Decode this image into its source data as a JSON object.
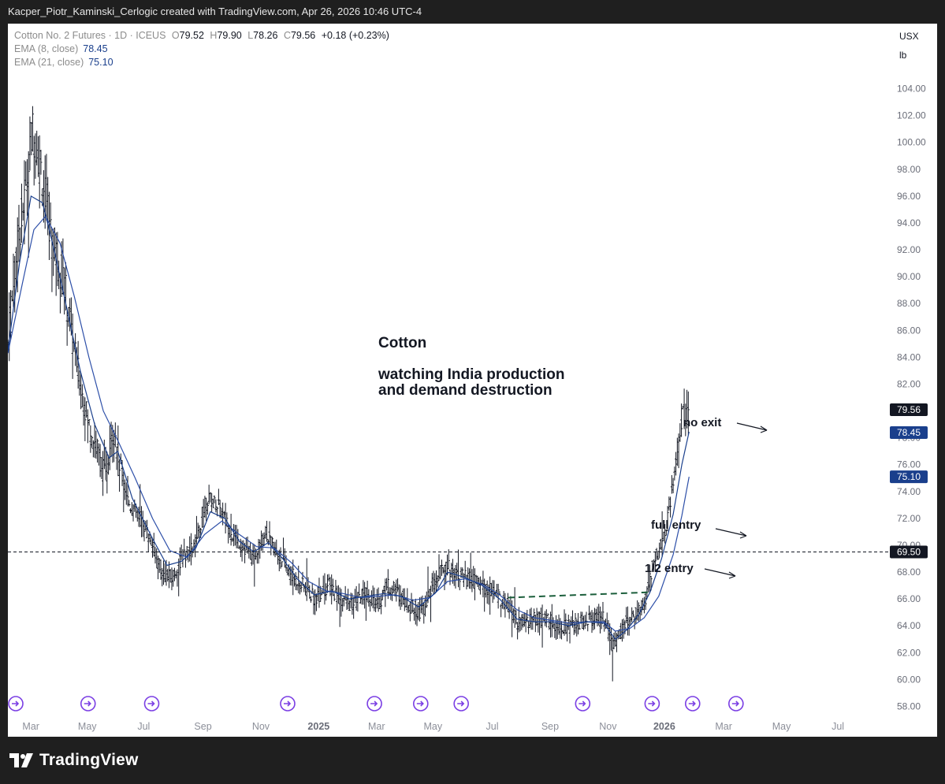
{
  "header": {
    "attribution": "Kacper_Piotr_Kaminski_Cerlogic created with TradingView.com, Apr 26, 2026 10:46 UTC-4"
  },
  "legend": {
    "symbol": "Cotton No. 2 Futures · 1D · ICEUS",
    "o_label": "O",
    "o_value": "79.52",
    "h_label": "H",
    "h_value": "79.90",
    "l_label": "L",
    "l_value": "78.26",
    "c_label": "C",
    "c_value": "79.56",
    "change": "+0.18 (+0.23%)",
    "ema8_label": "EMA (8, close)",
    "ema8_value": "78.45",
    "ema21_label": "EMA (21, close)",
    "ema21_value": "75.10"
  },
  "units": {
    "currency": "USX",
    "unit": "lb"
  },
  "annotations": {
    "title": "Cotton",
    "line1": "watching India production",
    "line2": "and demand destruction",
    "no_exit": "no exit",
    "full_entry": "full entry",
    "half_entry": "1/2 entry"
  },
  "footer": {
    "brand": "TradingView"
  },
  "colors": {
    "candles": "#131722",
    "ema8": "#1a3f8c",
    "ema21": "#2d4fa8",
    "dashed_level": "#131722",
    "trendline": "#1b5e3b",
    "event_icon": "#7b3fe4",
    "last_price_bg": "#131722",
    "ema_tag_bg": "#1a3f8c"
  },
  "chart_data": {
    "type": "candlestick",
    "y_ticks": [
      "104.00",
      "102.00",
      "100.00",
      "98.00",
      "96.00",
      "94.00",
      "92.00",
      "90.00",
      "88.00",
      "86.00",
      "84.00",
      "82.00",
      "80.00",
      "78.00",
      "76.00",
      "74.00",
      "72.00",
      "70.00",
      "68.00",
      "66.00",
      "64.00",
      "62.00",
      "60.00",
      "58.00"
    ],
    "x_ticks": [
      {
        "label": "Mar",
        "bold": false
      },
      {
        "label": "May",
        "bold": false
      },
      {
        "label": "Jul",
        "bold": false
      },
      {
        "label": "Sep",
        "bold": false
      },
      {
        "label": "Nov",
        "bold": false
      },
      {
        "label": "2025",
        "bold": true
      },
      {
        "label": "Mar",
        "bold": false
      },
      {
        "label": "May",
        "bold": false
      },
      {
        "label": "Jul",
        "bold": false
      },
      {
        "label": "Sep",
        "bold": false
      },
      {
        "label": "Nov",
        "bold": false
      },
      {
        "label": "2026",
        "bold": true
      },
      {
        "label": "Mar",
        "bold": false
      },
      {
        "label": "May",
        "bold": false
      },
      {
        "label": "Jul",
        "bold": false
      }
    ],
    "ylim": [
      57.5,
      105.5
    ],
    "horizontal_level": 69.5,
    "price_tags": {
      "last": "79.56",
      "ema8": "78.45",
      "ema21": "75.10",
      "level": "69.50"
    },
    "price_path": [
      {
        "m": 0.0,
        "p": 85
      },
      {
        "m": 0.3,
        "p": 92
      },
      {
        "m": 0.6,
        "p": 96
      },
      {
        "m": 0.85,
        "p": 101
      },
      {
        "m": 1.15,
        "p": 98
      },
      {
        "m": 1.5,
        "p": 93
      },
      {
        "m": 1.9,
        "p": 90
      },
      {
        "m": 2.2,
        "p": 86
      },
      {
        "m": 2.5,
        "p": 82
      },
      {
        "m": 2.8,
        "p": 79
      },
      {
        "m": 3.1,
        "p": 77
      },
      {
        "m": 3.4,
        "p": 75
      },
      {
        "m": 3.65,
        "p": 79
      },
      {
        "m": 3.85,
        "p": 76
      },
      {
        "m": 4.2,
        "p": 73
      },
      {
        "m": 4.6,
        "p": 72
      },
      {
        "m": 5.0,
        "p": 70
      },
      {
        "m": 5.3,
        "p": 68
      },
      {
        "m": 5.7,
        "p": 67.5
      },
      {
        "m": 6.0,
        "p": 69
      },
      {
        "m": 6.5,
        "p": 70
      },
      {
        "m": 6.9,
        "p": 73.5
      },
      {
        "m": 7.3,
        "p": 73
      },
      {
        "m": 7.7,
        "p": 71
      },
      {
        "m": 8.1,
        "p": 70
      },
      {
        "m": 8.5,
        "p": 69
      },
      {
        "m": 8.9,
        "p": 71
      },
      {
        "m": 9.3,
        "p": 69.5
      },
      {
        "m": 9.7,
        "p": 68
      },
      {
        "m": 10.2,
        "p": 67
      },
      {
        "m": 10.6,
        "p": 66
      },
      {
        "m": 11.1,
        "p": 67
      },
      {
        "m": 11.5,
        "p": 66
      },
      {
        "m": 11.9,
        "p": 65.5
      },
      {
        "m": 12.4,
        "p": 66.5
      },
      {
        "m": 12.8,
        "p": 65.5
      },
      {
        "m": 13.1,
        "p": 67
      },
      {
        "m": 13.5,
        "p": 66.5
      },
      {
        "m": 13.9,
        "p": 65.5
      },
      {
        "m": 14.3,
        "p": 65
      },
      {
        "m": 14.7,
        "p": 67
      },
      {
        "m": 15.1,
        "p": 68.5
      },
      {
        "m": 15.5,
        "p": 68
      },
      {
        "m": 15.9,
        "p": 67.5
      },
      {
        "m": 16.4,
        "p": 67
      },
      {
        "m": 16.8,
        "p": 66.5
      },
      {
        "m": 17.3,
        "p": 65.5
      },
      {
        "m": 17.7,
        "p": 64
      },
      {
        "m": 18.1,
        "p": 64.5
      },
      {
        "m": 18.6,
        "p": 64.5
      },
      {
        "m": 19.1,
        "p": 64
      },
      {
        "m": 19.6,
        "p": 64
      },
      {
        "m": 20.1,
        "p": 64.5
      },
      {
        "m": 20.6,
        "p": 64.5
      },
      {
        "m": 20.9,
        "p": 62.5
      },
      {
        "m": 21.3,
        "p": 64
      },
      {
        "m": 21.7,
        "p": 65
      },
      {
        "m": 22.0,
        "p": 65.5
      },
      {
        "m": 22.3,
        "p": 68.5
      },
      {
        "m": 22.6,
        "p": 70
      },
      {
        "m": 22.9,
        "p": 73
      },
      {
        "m": 23.15,
        "p": 77
      },
      {
        "m": 23.35,
        "p": 80
      },
      {
        "m": 23.55,
        "p": 79.56
      }
    ],
    "ema8_path": [
      {
        "m": 0.0,
        "p": 84.5
      },
      {
        "m": 0.4,
        "p": 91
      },
      {
        "m": 0.8,
        "p": 96
      },
      {
        "m": 1.2,
        "p": 95.5
      },
      {
        "m": 1.6,
        "p": 92
      },
      {
        "m": 2.0,
        "p": 88
      },
      {
        "m": 2.5,
        "p": 83
      },
      {
        "m": 3.0,
        "p": 79
      },
      {
        "m": 3.5,
        "p": 76.5
      },
      {
        "m": 3.8,
        "p": 77
      },
      {
        "m": 4.3,
        "p": 73.5
      },
      {
        "m": 5.0,
        "p": 70.5
      },
      {
        "m": 5.5,
        "p": 68.5
      },
      {
        "m": 6.0,
        "p": 68.8
      },
      {
        "m": 6.5,
        "p": 69.8
      },
      {
        "m": 7.0,
        "p": 72.5
      },
      {
        "m": 7.5,
        "p": 72
      },
      {
        "m": 8.0,
        "p": 70.3
      },
      {
        "m": 8.5,
        "p": 69.5
      },
      {
        "m": 9.0,
        "p": 70.2
      },
      {
        "m": 9.5,
        "p": 69
      },
      {
        "m": 10.0,
        "p": 67.5
      },
      {
        "m": 10.6,
        "p": 66.3
      },
      {
        "m": 11.2,
        "p": 66.6
      },
      {
        "m": 11.8,
        "p": 66
      },
      {
        "m": 12.4,
        "p": 66.2
      },
      {
        "m": 13.0,
        "p": 66.4
      },
      {
        "m": 13.6,
        "p": 66.2
      },
      {
        "m": 14.2,
        "p": 65.4
      },
      {
        "m": 14.8,
        "p": 66.5
      },
      {
        "m": 15.2,
        "p": 68
      },
      {
        "m": 15.8,
        "p": 67.6
      },
      {
        "m": 16.4,
        "p": 67
      },
      {
        "m": 17.0,
        "p": 66
      },
      {
        "m": 17.6,
        "p": 64.5
      },
      {
        "m": 18.2,
        "p": 64.3
      },
      {
        "m": 18.8,
        "p": 64.3
      },
      {
        "m": 19.4,
        "p": 64
      },
      {
        "m": 20.0,
        "p": 64.3
      },
      {
        "m": 20.6,
        "p": 64.2
      },
      {
        "m": 21.0,
        "p": 63
      },
      {
        "m": 21.4,
        "p": 63.7
      },
      {
        "m": 21.8,
        "p": 64.8
      },
      {
        "m": 22.2,
        "p": 66.5
      },
      {
        "m": 22.6,
        "p": 69
      },
      {
        "m": 23.0,
        "p": 72.3
      },
      {
        "m": 23.3,
        "p": 76
      },
      {
        "m": 23.55,
        "p": 78.45
      }
    ],
    "ema21_path": [
      {
        "m": 0.0,
        "p": 84.3
      },
      {
        "m": 0.5,
        "p": 89.5
      },
      {
        "m": 0.9,
        "p": 93.5
      },
      {
        "m": 1.3,
        "p": 94.5
      },
      {
        "m": 1.8,
        "p": 92.5
      },
      {
        "m": 2.3,
        "p": 88.5
      },
      {
        "m": 2.8,
        "p": 84
      },
      {
        "m": 3.3,
        "p": 80
      },
      {
        "m": 3.8,
        "p": 77.8
      },
      {
        "m": 4.4,
        "p": 75
      },
      {
        "m": 5.0,
        "p": 72
      },
      {
        "m": 5.6,
        "p": 69.6
      },
      {
        "m": 6.2,
        "p": 69.1
      },
      {
        "m": 6.8,
        "p": 70.8
      },
      {
        "m": 7.4,
        "p": 71.8
      },
      {
        "m": 8.0,
        "p": 70.8
      },
      {
        "m": 8.6,
        "p": 69.9
      },
      {
        "m": 9.2,
        "p": 69.8
      },
      {
        "m": 9.8,
        "p": 68.7
      },
      {
        "m": 10.4,
        "p": 67.3
      },
      {
        "m": 11.0,
        "p": 66.6
      },
      {
        "m": 11.6,
        "p": 66.4
      },
      {
        "m": 12.2,
        "p": 66.1
      },
      {
        "m": 12.8,
        "p": 66.2
      },
      {
        "m": 13.4,
        "p": 66.3
      },
      {
        "m": 14.0,
        "p": 65.9
      },
      {
        "m": 14.6,
        "p": 66.1
      },
      {
        "m": 15.2,
        "p": 67.3
      },
      {
        "m": 15.8,
        "p": 67.5
      },
      {
        "m": 16.4,
        "p": 67.1
      },
      {
        "m": 17.0,
        "p": 66.3
      },
      {
        "m": 17.6,
        "p": 65.2
      },
      {
        "m": 18.2,
        "p": 64.6
      },
      {
        "m": 18.8,
        "p": 64.4
      },
      {
        "m": 19.4,
        "p": 64.2
      },
      {
        "m": 20.0,
        "p": 64.3
      },
      {
        "m": 20.6,
        "p": 64.3
      },
      {
        "m": 21.0,
        "p": 63.6
      },
      {
        "m": 21.5,
        "p": 63.8
      },
      {
        "m": 22.0,
        "p": 64.6
      },
      {
        "m": 22.5,
        "p": 66.2
      },
      {
        "m": 23.0,
        "p": 69.3
      },
      {
        "m": 23.3,
        "p": 72.2
      },
      {
        "m": 23.55,
        "p": 75.1
      }
    ],
    "half_entry_trendline": {
      "from": {
        "m": 17.3,
        "p": 66.1
      },
      "to": {
        "m": 22.2,
        "p": 66.5
      }
    },
    "event_markers_month": [
      0,
      2.5,
      4.7,
      9.4,
      12.4,
      14.0,
      15.4,
      19.6,
      22.0,
      23.4,
      24.9
    ]
  }
}
